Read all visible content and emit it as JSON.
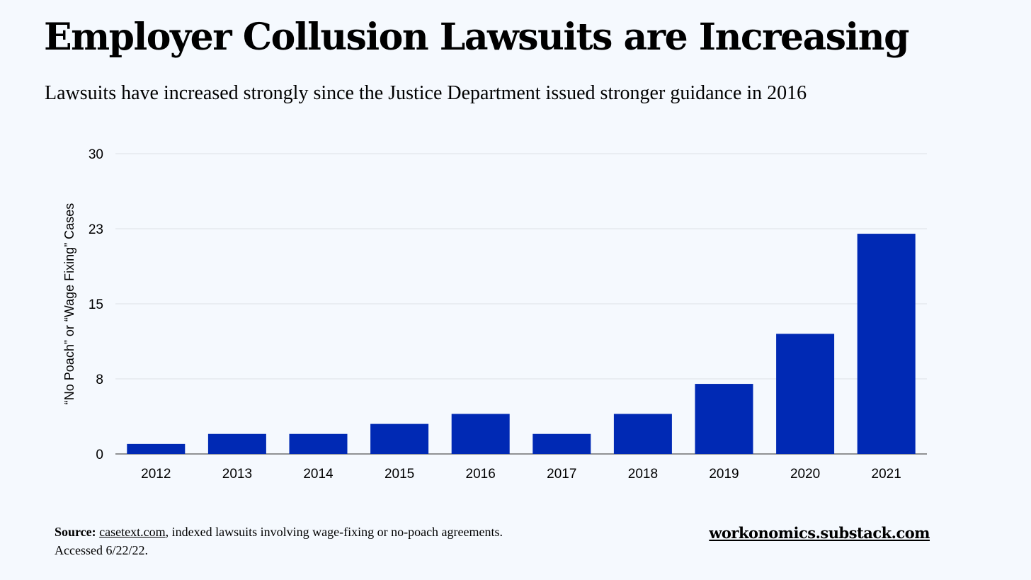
{
  "chart_data": {
    "type": "bar",
    "title": "Employer Collusion Lawsuits are Increasing",
    "subtitle": "Lawsuits have increased strongly since the Justice Department issued stronger guidance in 2016",
    "categories": [
      "2012",
      "2013",
      "2014",
      "2015",
      "2016",
      "2017",
      "2018",
      "2019",
      "2020",
      "2021"
    ],
    "values": [
      1,
      2,
      2,
      3,
      4,
      2,
      4,
      7,
      12,
      22
    ],
    "xlabel": "",
    "ylabel": "“No Poach” or “Wage Fixing” Cases",
    "ylim": [
      0,
      30
    ],
    "yticks": [
      0,
      7.5,
      15,
      22.5,
      30
    ],
    "ytick_labels": [
      "0",
      "8",
      "15",
      "23",
      "30"
    ],
    "grid": true,
    "bar_color": "#0029b4"
  },
  "footer": {
    "source_label": "Source:",
    "source_link": "casetext.com",
    "source_text": ", indexed lawsuits involving wage-fixing or no-poach agreements.",
    "accessed": "Accessed 6/22/22.",
    "brand": "workonomics.substack.com"
  }
}
